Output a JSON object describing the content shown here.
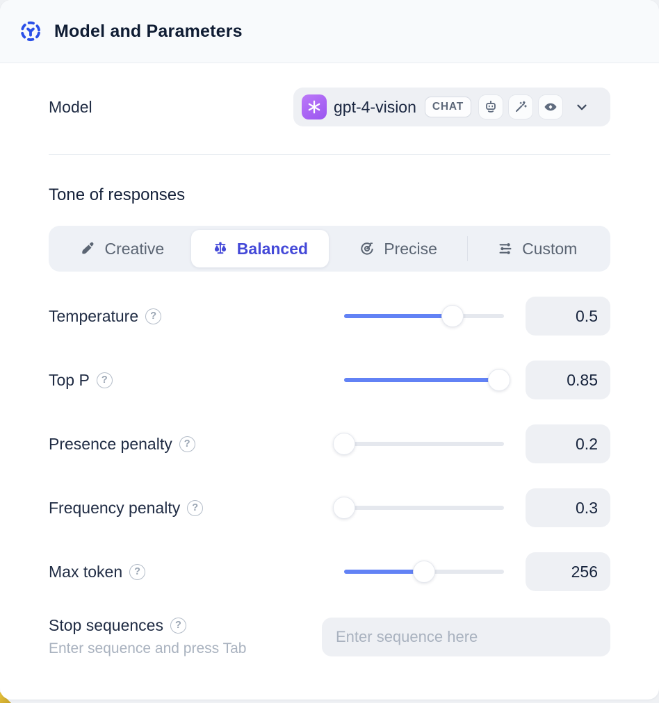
{
  "header": {
    "title": "Model and Parameters",
    "icon": "model-hub-icon"
  },
  "model_row": {
    "label": "Model",
    "selected_model": "gpt-4-vision",
    "badge": "CHAT",
    "capability_icons": [
      "robot-icon",
      "wand-icon",
      "vision-icon"
    ],
    "provider_icon": "openai-logo"
  },
  "tone": {
    "heading": "Tone of responses",
    "options": [
      {
        "label": "Creative",
        "icon": "paintbrush-icon",
        "selected": false
      },
      {
        "label": "Balanced",
        "icon": "scale-icon",
        "selected": true
      },
      {
        "label": "Precise",
        "icon": "target-icon",
        "selected": false
      },
      {
        "label": "Custom",
        "icon": "sliders-icon",
        "selected": false
      }
    ]
  },
  "parameters": [
    {
      "label": "Temperature",
      "value": "0.5",
      "fill_pct": 68
    },
    {
      "label": "Top P",
      "value": "0.85",
      "fill_pct": 97
    },
    {
      "label": "Presence penalty",
      "value": "0.2",
      "fill_pct": 0
    },
    {
      "label": "Frequency penalty",
      "value": "0.3",
      "fill_pct": 0
    },
    {
      "label": "Max token",
      "value": "256",
      "fill_pct": 50
    }
  ],
  "stop_sequences": {
    "label": "Stop sequences",
    "hint": "Enter sequence and press Tab",
    "placeholder": "Enter sequence here"
  },
  "colors": {
    "accent_blue": "#2b50e8",
    "slider_blue": "#6282f5",
    "selected_indigo": "#4449d8",
    "field_gray": "#eef0f4",
    "muted_text": "#a9b2bf",
    "logo_purple": "#a661f3",
    "corner_gold": "#dcb62f"
  }
}
